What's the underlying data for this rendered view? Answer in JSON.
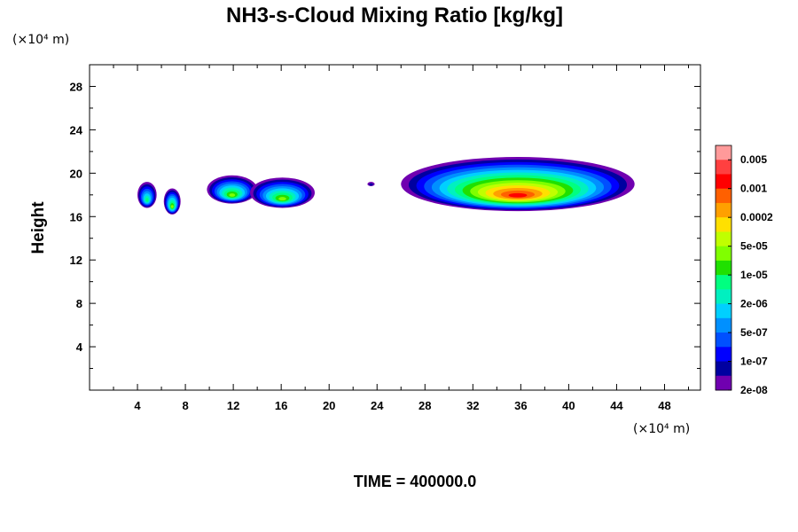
{
  "chart_data": {
    "type": "heatmap",
    "title": "NH3-s-Cloud Mixing Ratio [kg/kg]",
    "ylabel": "Height",
    "xlabel": "",
    "x_unit_label": "(×10⁴ m)",
    "y_unit_label": "(×10⁴ m)",
    "xlim": [
      0,
      51
    ],
    "ylim": [
      0,
      30
    ],
    "x_ticks": [
      4,
      8,
      12,
      16,
      20,
      24,
      28,
      32,
      36,
      40,
      44,
      48
    ],
    "y_ticks": [
      4,
      8,
      12,
      16,
      20,
      24,
      28
    ],
    "grid": false,
    "footer": "TIME = 400000.0",
    "colorbar": {
      "placement": "right",
      "labels": [
        "0.005",
        "0.001",
        "0.0002",
        "5e-05",
        "1e-05",
        "2e-06",
        "5e-07",
        "1e-07",
        "2e-08"
      ],
      "colors_top_to_bottom": [
        "#ff9a9a",
        "#ff4040",
        "#ff0000",
        "#ff6000",
        "#ffa000",
        "#ffe000",
        "#c0ff00",
        "#80ff00",
        "#20e000",
        "#00ff80",
        "#00f0c0",
        "#00d0ff",
        "#0090ff",
        "#0050ff",
        "#0000ff",
        "#0000a0",
        "#7000b0"
      ]
    },
    "regions": [
      {
        "x_range": [
          4.0,
          5.6
        ],
        "y_range": [
          16.8,
          19.2
        ],
        "max_level": "1e-05",
        "level_index": 9
      },
      {
        "x_range": [
          6.2,
          7.6
        ],
        "y_range": [
          16.2,
          18.6
        ],
        "max_level": "5e-05",
        "level_index": 7
      },
      {
        "x_range": [
          9.8,
          14.0
        ],
        "y_range": [
          17.2,
          19.8
        ],
        "max_level": "5e-05",
        "level_index": 7
      },
      {
        "x_range": [
          13.4,
          18.8
        ],
        "y_range": [
          16.8,
          19.6
        ],
        "max_level": "5e-05",
        "level_index": 7
      },
      {
        "x_range": [
          26.0,
          45.5
        ],
        "y_range": [
          16.5,
          21.5
        ],
        "max_level": "0.005",
        "level_index": 2
      },
      {
        "x_range": [
          23.2,
          23.8
        ],
        "y_range": [
          18.8,
          19.2
        ],
        "max_level": "2e-08",
        "level_index": 15
      }
    ]
  }
}
